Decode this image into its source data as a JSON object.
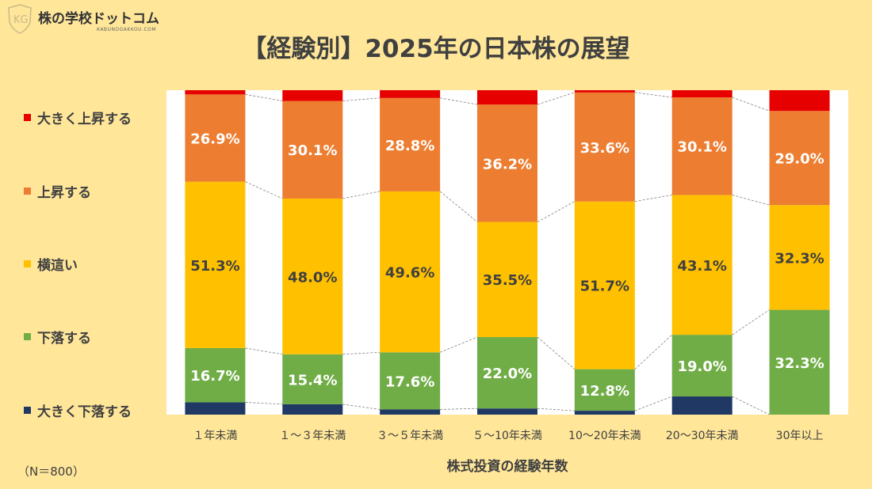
{
  "logo": {
    "text": "株の学校ドットコム",
    "sub": "KABUNOGAKKOU.COM"
  },
  "note": "（N＝800）",
  "chart_data": {
    "type": "bar",
    "stacked": true,
    "percent": true,
    "title": "【経験別】2025年の日本株の展望",
    "xlabel": "株式投資の経験年数",
    "ylabel": "",
    "ylim": [
      0,
      100
    ],
    "legend_position": "left",
    "categories": [
      "１年未満",
      "１～３年未満",
      "３～５年未満",
      "５～10年未満",
      "10～20年未満",
      "20～30年未満",
      "30年以上"
    ],
    "series": [
      {
        "name": "大きく下落する",
        "color": "#203864",
        "values": [
          3.8,
          3.2,
          1.6,
          1.9,
          1.2,
          5.6,
          0
        ]
      },
      {
        "name": "下落する",
        "color": "#70ad47",
        "values": [
          16.7,
          15.4,
          17.6,
          22.0,
          12.8,
          19.0,
          32.3
        ]
      },
      {
        "name": "横這い",
        "color": "#ffc000",
        "values": [
          51.3,
          48.0,
          49.6,
          35.5,
          51.7,
          43.1,
          32.3
        ]
      },
      {
        "name": "上昇する",
        "color": "#ed7d31",
        "values": [
          26.9,
          30.1,
          28.8,
          36.2,
          33.6,
          30.1,
          29.0
        ]
      },
      {
        "name": "大きく上昇する",
        "color": "#e60000",
        "values": [
          1.3,
          3.3,
          2.4,
          4.4,
          0.7,
          2.2,
          6.4
        ]
      }
    ],
    "labeled_series": [
      1,
      2,
      3
    ]
  }
}
